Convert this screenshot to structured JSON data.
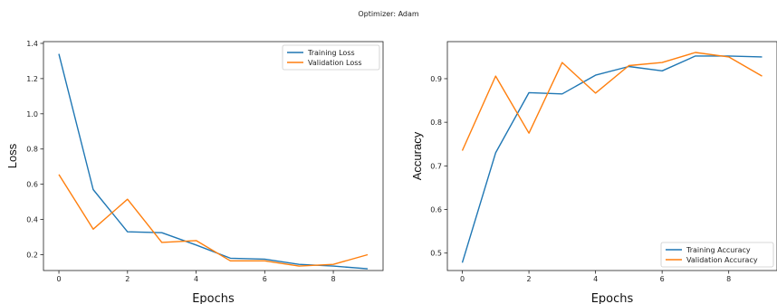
{
  "figure": {
    "title": "Optimizer: Adam"
  },
  "chart_data": [
    {
      "type": "line",
      "xlabel": "Epochs",
      "ylabel": "Loss",
      "x": [
        0,
        1,
        2,
        3,
        4,
        5,
        6,
        7,
        8,
        9
      ],
      "xlim": [
        -0.45,
        9.45
      ],
      "ylim": [
        0.11,
        1.41
      ],
      "xticks": [
        0,
        2,
        4,
        6,
        8
      ],
      "xtick_labels": [
        "0",
        "2",
        "4",
        "6",
        "8"
      ],
      "yticks": [
        0.2,
        0.4,
        0.6,
        0.8,
        1.0,
        1.2,
        1.4
      ],
      "ytick_labels": [
        "0.2",
        "0.4",
        "0.6",
        "0.8",
        "1.0",
        "1.2",
        "1.4"
      ],
      "grid": false,
      "legend_position": "upper right",
      "series": [
        {
          "name": "Training Loss",
          "color": "#1f77b4",
          "values": [
            1.34,
            0.57,
            0.33,
            0.325,
            0.255,
            0.18,
            0.175,
            0.145,
            0.135,
            0.12
          ]
        },
        {
          "name": "Validation Loss",
          "color": "#ff7f0e",
          "values": [
            0.655,
            0.345,
            0.515,
            0.27,
            0.28,
            0.165,
            0.165,
            0.135,
            0.145,
            0.2
          ]
        }
      ]
    },
    {
      "type": "line",
      "xlabel": "Epochs",
      "ylabel": "Accuracy",
      "x": [
        0,
        1,
        2,
        3,
        4,
        5,
        6,
        7,
        8,
        9
      ],
      "xlim": [
        -0.45,
        9.45
      ],
      "ylim": [
        0.46,
        0.985
      ],
      "xticks": [
        0,
        2,
        4,
        6,
        8
      ],
      "xtick_labels": [
        "0",
        "2",
        "4",
        "6",
        "8"
      ],
      "yticks": [
        0.5,
        0.6,
        0.7,
        0.8,
        0.9
      ],
      "ytick_labels": [
        "0.5",
        "0.6",
        "0.7",
        "0.8",
        "0.9"
      ],
      "grid": false,
      "legend_position": "lower right",
      "series": [
        {
          "name": "Training Accuracy",
          "color": "#1f77b4",
          "values": [
            0.478,
            0.73,
            0.868,
            0.865,
            0.908,
            0.928,
            0.918,
            0.952,
            0.952,
            0.95
          ]
        },
        {
          "name": "Validation Accuracy",
          "color": "#ff7f0e",
          "values": [
            0.735,
            0.906,
            0.775,
            0.937,
            0.867,
            0.93,
            0.937,
            0.96,
            0.95,
            0.906
          ]
        }
      ]
    }
  ]
}
